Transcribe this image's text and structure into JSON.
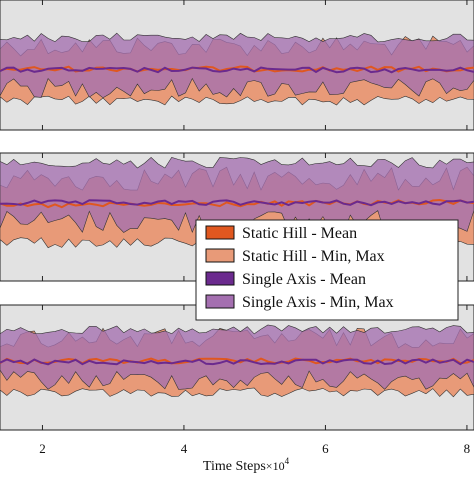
{
  "chart_data": {
    "type": "area",
    "panels": 3,
    "xlabel": "Time Steps",
    "xlabel_multiplier": "×10",
    "xlabel_exponent": "4",
    "x_ticks": [
      "2",
      "4",
      "6",
      "8"
    ],
    "x_tick_values": [
      2,
      4,
      6,
      8
    ],
    "x_range": [
      1.4,
      8.1
    ],
    "grid": "off",
    "legend_placement": "bottom-right of middle panel",
    "colors": {
      "static_mean": "#e0571f",
      "static_band": "#e89a78",
      "axis_mean": "#6b2a8e",
      "axis_band": "#a46fb0",
      "overlap": "#8f5078",
      "panel_bg": "#e2e2e2"
    },
    "legend": [
      {
        "label": "Static Hill - Mean",
        "kind": "mean",
        "series": "static"
      },
      {
        "label": "Static Hill - Min, Max",
        "kind": "band",
        "series": "static"
      },
      {
        "label": "Single Axis - Mean",
        "kind": "mean",
        "series": "axis"
      },
      {
        "label": "Single Axis - Min, Max",
        "kind": "band",
        "series": "axis"
      }
    ]
  }
}
